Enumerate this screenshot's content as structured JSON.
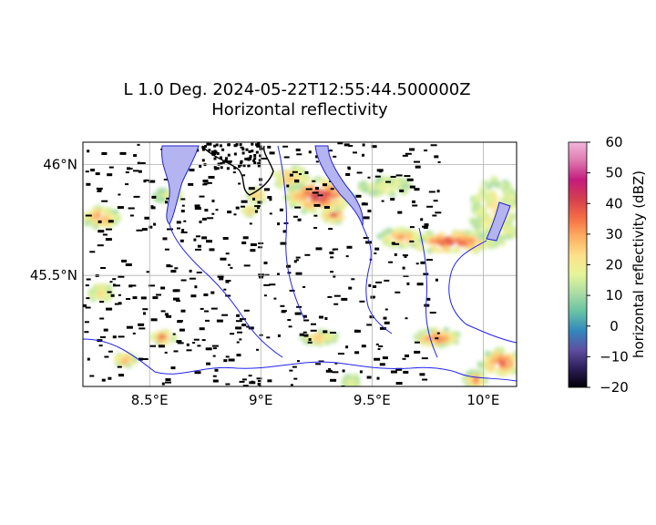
{
  "chart_data": {
    "type": "heatmap",
    "title": "L 1.0 Deg. 2024-05-22T12:55:44.500000Z",
    "subtitle": "Horizontal reflectivity",
    "x_ticks": [
      {
        "value": 8.5,
        "label": "8.5°E"
      },
      {
        "value": 9.0,
        "label": "9°E"
      },
      {
        "value": 9.5,
        "label": "9.5°E"
      },
      {
        "value": 10.0,
        "label": "10°E"
      }
    ],
    "y_ticks": [
      {
        "value": 45.5,
        "label": "45.5°N"
      },
      {
        "value": 46.0,
        "label": "46°N"
      }
    ],
    "xlim": [
      8.2,
      10.15
    ],
    "ylim": [
      45.0,
      46.1
    ],
    "grid": true,
    "colorbar": {
      "label": "horizontal reflectivity (dBZ)",
      "min": -20,
      "max": 60,
      "ticks": [
        -20,
        -10,
        0,
        10,
        20,
        30,
        40,
        50,
        60
      ],
      "colormap": "spectral",
      "colors": [
        "#000004",
        "#2d1e5a",
        "#5e4fa2",
        "#3288bd",
        "#66c2a5",
        "#abdda4",
        "#e6f598",
        "#fee08b",
        "#fdae61",
        "#f46d43",
        "#d53e4f",
        "#c51b7d",
        "#de77ae",
        "#f1b6da"
      ]
    },
    "echo_cells": [
      {
        "lon": 8.27,
        "lat": 45.77,
        "dbz": 35,
        "rx": 0.08,
        "ry": 0.05
      },
      {
        "lon": 9.25,
        "lat": 45.87,
        "dbz": 45,
        "rx": 0.16,
        "ry": 0.08
      },
      {
        "lon": 9.12,
        "lat": 45.95,
        "dbz": 30,
        "rx": 0.08,
        "ry": 0.05
      },
      {
        "lon": 9.32,
        "lat": 45.78,
        "dbz": 50,
        "rx": 0.06,
        "ry": 0.03
      },
      {
        "lon": 8.97,
        "lat": 45.87,
        "dbz": 35,
        "rx": 0.04,
        "ry": 0.03
      },
      {
        "lon": 8.94,
        "lat": 45.8,
        "dbz": 30,
        "rx": 0.03,
        "ry": 0.02
      },
      {
        "lon": 9.85,
        "lat": 45.66,
        "dbz": 45,
        "rx": 0.2,
        "ry": 0.05
      },
      {
        "lon": 9.62,
        "lat": 45.68,
        "dbz": 35,
        "rx": 0.1,
        "ry": 0.04
      },
      {
        "lon": 10.05,
        "lat": 45.8,
        "dbz": 22,
        "rx": 0.12,
        "ry": 0.15
      },
      {
        "lon": 9.55,
        "lat": 45.91,
        "dbz": 18,
        "rx": 0.12,
        "ry": 0.04
      },
      {
        "lon": 8.27,
        "lat": 45.43,
        "dbz": 22,
        "rx": 0.05,
        "ry": 0.04
      },
      {
        "lon": 8.38,
        "lat": 45.13,
        "dbz": 35,
        "rx": 0.05,
        "ry": 0.03
      },
      {
        "lon": 8.55,
        "lat": 45.23,
        "dbz": 40,
        "rx": 0.05,
        "ry": 0.03
      },
      {
        "lon": 9.25,
        "lat": 45.23,
        "dbz": 30,
        "rx": 0.08,
        "ry": 0.03
      },
      {
        "lon": 9.78,
        "lat": 45.23,
        "dbz": 40,
        "rx": 0.1,
        "ry": 0.04
      },
      {
        "lon": 10.07,
        "lat": 45.12,
        "dbz": 40,
        "rx": 0.1,
        "ry": 0.06
      },
      {
        "lon": 9.95,
        "lat": 45.04,
        "dbz": 35,
        "rx": 0.05,
        "ry": 0.04
      },
      {
        "lon": 9.4,
        "lat": 45.03,
        "dbz": 18,
        "rx": 0.04,
        "ry": 0.03
      },
      {
        "lon": 8.57,
        "lat": 45.87,
        "dbz": 18,
        "rx": 0.06,
        "ry": 0.03
      }
    ]
  }
}
